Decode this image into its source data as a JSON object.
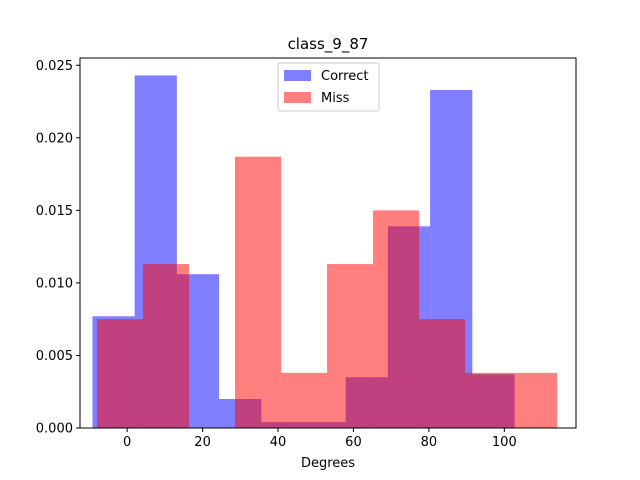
{
  "chart_data": {
    "type": "histogram",
    "title": "class_9_87",
    "xlabel": "Degrees",
    "ylabel": "",
    "xlim": [
      -12.5,
      119
    ],
    "ylim": [
      0,
      0.0255
    ],
    "x_ticks": [
      0,
      20,
      40,
      60,
      80,
      100
    ],
    "y_ticks": [
      0.0,
      0.005,
      0.01,
      0.015,
      0.02,
      0.025
    ],
    "y_tick_labels": [
      "0.000",
      "0.005",
      "0.010",
      "0.015",
      "0.020",
      "0.025"
    ],
    "legend_position": "top-center",
    "series": [
      {
        "name": "Correct",
        "color": "#0000ff",
        "alpha": 0.5,
        "bin_edges": [
          -9.2,
          1.99,
          13.18,
          24.37,
          35.56,
          46.75,
          57.94,
          69.13,
          80.32,
          91.51,
          102.7
        ],
        "values": [
          0.0077,
          0.0243,
          0.0106,
          0.002,
          0.0004,
          0.0004,
          0.0035,
          0.0139,
          0.0233,
          0.0037
        ]
      },
      {
        "name": "Miss",
        "color": "#ff0000",
        "alpha": 0.5,
        "bin_edges": [
          -8.0,
          4.2,
          16.4,
          28.6,
          40.8,
          53.0,
          65.2,
          77.4,
          89.6,
          101.8,
          114.0
        ],
        "values": [
          0.0075,
          0.0113,
          0.0,
          0.0187,
          0.0038,
          0.0113,
          0.015,
          0.0075,
          0.0038,
          0.0038
        ]
      }
    ]
  }
}
